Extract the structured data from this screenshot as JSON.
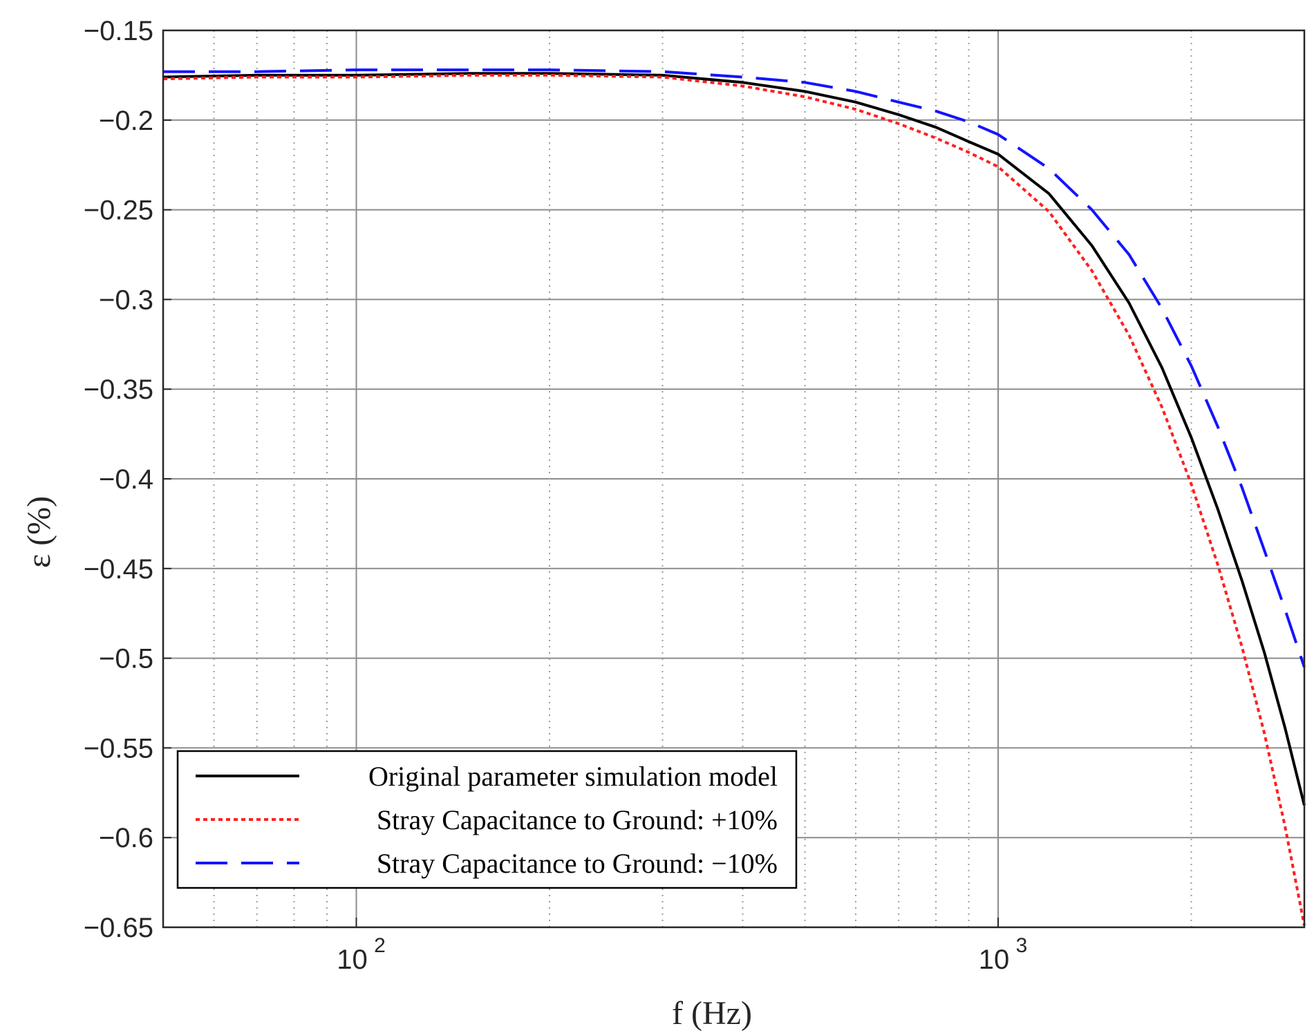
{
  "chart_data": {
    "type": "line",
    "xlabel": "f (Hz)",
    "ylabel": "ε (%)",
    "xscale": "log",
    "xlim": [
      50,
      3000
    ],
    "ylim": [
      -0.65,
      -0.15
    ],
    "x_tick_labels": [
      {
        "value": 100,
        "base": "10",
        "exp": "2"
      },
      {
        "value": 1000,
        "base": "10",
        "exp": "3"
      }
    ],
    "y_ticks": [
      -0.15,
      -0.2,
      -0.25,
      -0.3,
      -0.35,
      -0.4,
      -0.45,
      -0.5,
      -0.55,
      -0.6,
      -0.65
    ],
    "y_tick_labels": [
      "−0.15",
      "−0.2",
      "−0.25",
      "−0.3",
      "−0.35",
      "−0.4",
      "−0.45",
      "−0.5",
      "−0.55",
      "−0.6",
      "−0.65"
    ],
    "grid": true,
    "legend_position": "bottom-left",
    "series": [
      {
        "name": "Original parameter simulation model",
        "color": "#000000",
        "style": "solid",
        "x": [
          50,
          70,
          100,
          150,
          200,
          300,
          400,
          500,
          600,
          700,
          800,
          900,
          1000,
          1200,
          1400,
          1600,
          1800,
          2000,
          2200,
          2400,
          2600,
          2800,
          3000
        ],
        "y": [
          -0.176,
          -0.175,
          -0.175,
          -0.174,
          -0.174,
          -0.175,
          -0.179,
          -0.184,
          -0.19,
          -0.197,
          -0.204,
          -0.212,
          -0.219,
          -0.241,
          -0.27,
          -0.302,
          -0.338,
          -0.377,
          -0.417,
          -0.457,
          -0.497,
          -0.539,
          -0.582
        ]
      },
      {
        "name": "Stray Capacitance to Ground: +10%",
        "color": "#ff2020",
        "style": "dotted",
        "x": [
          50,
          70,
          100,
          150,
          200,
          300,
          400,
          500,
          600,
          700,
          800,
          900,
          1000,
          1200,
          1400,
          1600,
          1800,
          2000,
          2200,
          2400,
          2600,
          2800,
          3000
        ],
        "y": [
          -0.177,
          -0.176,
          -0.176,
          -0.175,
          -0.175,
          -0.176,
          -0.181,
          -0.187,
          -0.194,
          -0.202,
          -0.21,
          -0.218,
          -0.226,
          -0.251,
          -0.284,
          -0.32,
          -0.36,
          -0.403,
          -0.448,
          -0.494,
          -0.542,
          -0.594,
          -0.649
        ]
      },
      {
        "name": "Stray Capacitance to Ground: −10%",
        "color": "#1414ff",
        "style": "dashed",
        "x": [
          50,
          70,
          100,
          150,
          200,
          300,
          400,
          500,
          600,
          700,
          800,
          900,
          1000,
          1200,
          1400,
          1600,
          1800,
          2000,
          2200,
          2400,
          2600,
          2800,
          3000
        ],
        "y": [
          -0.173,
          -0.173,
          -0.172,
          -0.172,
          -0.172,
          -0.173,
          -0.176,
          -0.179,
          -0.184,
          -0.19,
          -0.195,
          -0.201,
          -0.208,
          -0.227,
          -0.25,
          -0.275,
          -0.305,
          -0.337,
          -0.371,
          -0.405,
          -0.44,
          -0.473,
          -0.505
        ]
      }
    ]
  }
}
